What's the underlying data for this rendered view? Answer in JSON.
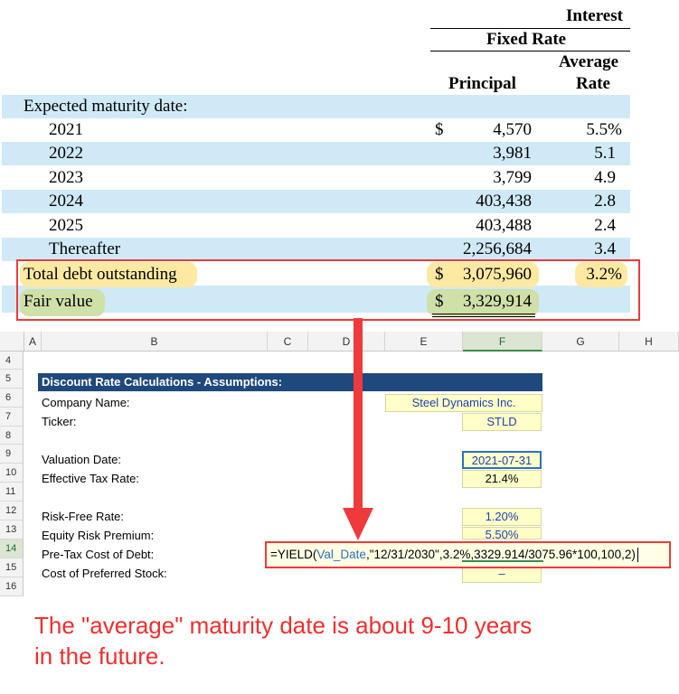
{
  "debt_table": {
    "header_interest": "Interest",
    "header_fixed_rate": "Fixed Rate",
    "header_average": "Average",
    "header_principal": "Principal",
    "header_rate": "Rate",
    "section_label": "Expected maturity date:",
    "rows": [
      {
        "year": "2021",
        "currency": "$",
        "principal": "4,570",
        "rate": "5.5%"
      },
      {
        "year": "2022",
        "currency": "",
        "principal": "3,981",
        "rate": "5.1"
      },
      {
        "year": "2023",
        "currency": "",
        "principal": "3,799",
        "rate": "4.9"
      },
      {
        "year": "2024",
        "currency": "",
        "principal": "403,438",
        "rate": "2.8"
      },
      {
        "year": "2025",
        "currency": "",
        "principal": "403,488",
        "rate": "2.4"
      },
      {
        "year": "Thereafter",
        "currency": "",
        "principal": "2,256,684",
        "rate": "3.4"
      }
    ],
    "total": {
      "label": "Total debt outstanding",
      "currency": "$",
      "principal": "3,075,960",
      "rate": "3.2%"
    },
    "fair_value": {
      "label": "Fair value",
      "currency": "$",
      "principal": "3,329,914"
    },
    "highlight_color": "#ee3a3a"
  },
  "spreadsheet": {
    "columns": [
      "A",
      "B",
      "C",
      "D",
      "E",
      "F",
      "G",
      "H"
    ],
    "active_column": "F",
    "row_numbers": [
      "4",
      "5",
      "6",
      "7",
      "8",
      "9",
      "10",
      "11",
      "12",
      "13",
      "14",
      "15",
      "16"
    ],
    "active_row": "14",
    "section_title": "Discount Rate Calculations - Assumptions:",
    "labels": {
      "company_name": "Company Name:",
      "ticker": "Ticker:",
      "valuation_date": "Valuation Date:",
      "effective_tax_rate": "Effective Tax Rate:",
      "risk_free_rate": "Risk-Free Rate:",
      "equity_risk_premium": "Equity Risk Premium:",
      "pre_tax_cost_of_debt": "Pre-Tax Cost of Debt:",
      "cost_of_preferred_stock": "Cost of Preferred Stock:"
    },
    "values": {
      "company_name": "Steel Dynamics Inc.",
      "ticker": "STLD",
      "valuation_date": "2021-07-31",
      "effective_tax_rate": "21.4%",
      "risk_free_rate": "1.20%",
      "equity_risk_premium": "5.50%",
      "cost_of_preferred_stock": "–"
    },
    "formula": {
      "prefix": "=YIELD(",
      "named_range": "Val_Date",
      "args_mid": ",\"12/31/2030\",",
      "arg_rate": "3.2%",
      "arg_sep": ",",
      "arg_price": "3329.914/3075.96*100",
      "suffix": ",100,2)"
    },
    "header_fill": "#1f497d",
    "input_fill": "#ffffc8"
  },
  "annotation": {
    "line1": "The \"average\" maturity date is about 9-10 years",
    "line2": "in the future.",
    "color": "#ee2f2f"
  }
}
